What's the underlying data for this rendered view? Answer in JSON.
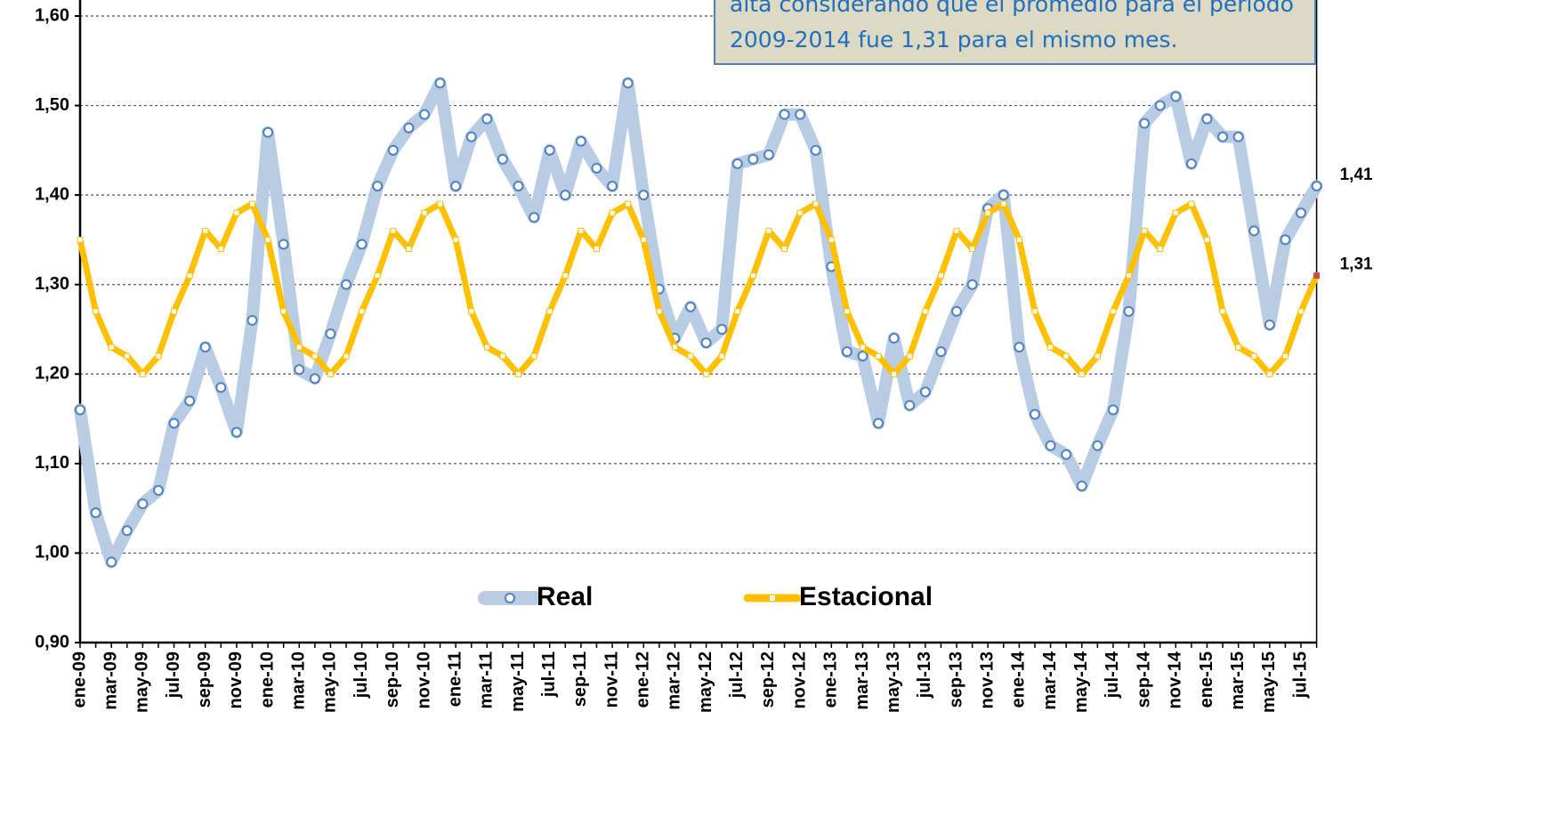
{
  "chart_data": {
    "type": "line",
    "annotation": [
      "alta considerando que el promedio para el período",
      "2009-2014 fue 1,31 para el mismo mes."
    ],
    "categories": [
      "ene-09",
      null,
      "mar-09",
      null,
      "may-09",
      null,
      "jul-09",
      null,
      "sep-09",
      null,
      "nov-09",
      null,
      "ene-10",
      null,
      "mar-10",
      null,
      "may-10",
      null,
      "jul-10",
      null,
      "sep-10",
      null,
      "nov-10",
      null,
      "ene-11",
      null,
      "mar-11",
      null,
      "may-11",
      null,
      "jul-11",
      null,
      "sep-11",
      null,
      "nov-11",
      null,
      "ene-12",
      null,
      "mar-12",
      null,
      "may-12",
      null,
      "jul-12",
      null,
      "sep-12",
      null,
      "nov-12",
      null,
      "ene-13",
      null,
      "mar-13",
      null,
      "may-13",
      null,
      "jul-13",
      null,
      "sep-13",
      null,
      "nov-13",
      null,
      "ene-14",
      null,
      "mar-14",
      null,
      "may-14",
      null,
      "jul-14",
      null,
      "sep-14",
      null,
      "nov-14",
      null,
      "ene-15",
      null,
      "mar-15",
      null,
      "may-15",
      null,
      "jul-15",
      null
    ],
    "series": [
      {
        "name": "Real",
        "color": "#b8cce4",
        "marker_color": "#4f81bd",
        "end_label": "1,41",
        "values": [
          1.16,
          1.045,
          0.99,
          1.025,
          1.055,
          1.07,
          1.145,
          1.17,
          1.23,
          1.185,
          1.135,
          1.26,
          1.47,
          1.345,
          1.205,
          1.195,
          1.245,
          1.3,
          1.345,
          1.41,
          1.45,
          1.475,
          1.49,
          1.525,
          1.41,
          1.465,
          1.485,
          1.44,
          1.41,
          1.375,
          1.45,
          1.4,
          1.46,
          1.43,
          1.41,
          1.525,
          1.4,
          1.295,
          1.24,
          1.275,
          1.235,
          1.25,
          1.435,
          1.44,
          1.445,
          1.49,
          1.49,
          1.45,
          1.32,
          1.225,
          1.22,
          1.145,
          1.24,
          1.165,
          1.18,
          1.225,
          1.27,
          1.3,
          1.385,
          1.4,
          1.23,
          1.155,
          1.12,
          1.11,
          1.075,
          1.12,
          1.16,
          1.27,
          1.48,
          1.5,
          1.51,
          1.435,
          1.485,
          1.465,
          1.465,
          1.36,
          1.255,
          1.35,
          1.38,
          1.41
        ]
      },
      {
        "name": "Estacional",
        "color": "#ffc000",
        "marker_color": "#ffc000",
        "last_marker_color": "#c0504d",
        "end_label": "1,31",
        "values": [
          1.35,
          1.27,
          1.23,
          1.22,
          1.2,
          1.22,
          1.27,
          1.31,
          1.36,
          1.34,
          1.38,
          1.39,
          1.35,
          1.27,
          1.23,
          1.22,
          1.2,
          1.22,
          1.27,
          1.31,
          1.36,
          1.34,
          1.38,
          1.39,
          1.35,
          1.27,
          1.23,
          1.22,
          1.2,
          1.22,
          1.27,
          1.31,
          1.36,
          1.34,
          1.38,
          1.39,
          1.35,
          1.27,
          1.23,
          1.22,
          1.2,
          1.22,
          1.27,
          1.31,
          1.36,
          1.34,
          1.38,
          1.39,
          1.35,
          1.27,
          1.23,
          1.22,
          1.2,
          1.22,
          1.27,
          1.31,
          1.36,
          1.34,
          1.38,
          1.39,
          1.35,
          1.27,
          1.23,
          1.22,
          1.2,
          1.22,
          1.27,
          1.31,
          1.36,
          1.34,
          1.38,
          1.39,
          1.35,
          1.27,
          1.23,
          1.22,
          1.2,
          1.22,
          1.27,
          1.31
        ]
      }
    ],
    "ylim": [
      0.9,
      1.6
    ],
    "yticks": [
      {
        "value": 0.9,
        "label": "0,90"
      },
      {
        "value": 1.0,
        "label": "1,00"
      },
      {
        "value": 1.1,
        "label": "1,10"
      },
      {
        "value": 1.2,
        "label": "1,20"
      },
      {
        "value": 1.3,
        "label": "1,30"
      },
      {
        "value": 1.4,
        "label": "1,40"
      },
      {
        "value": 1.5,
        "label": "1,50"
      },
      {
        "value": 1.6,
        "label": "1,60"
      }
    ],
    "grid": true
  }
}
